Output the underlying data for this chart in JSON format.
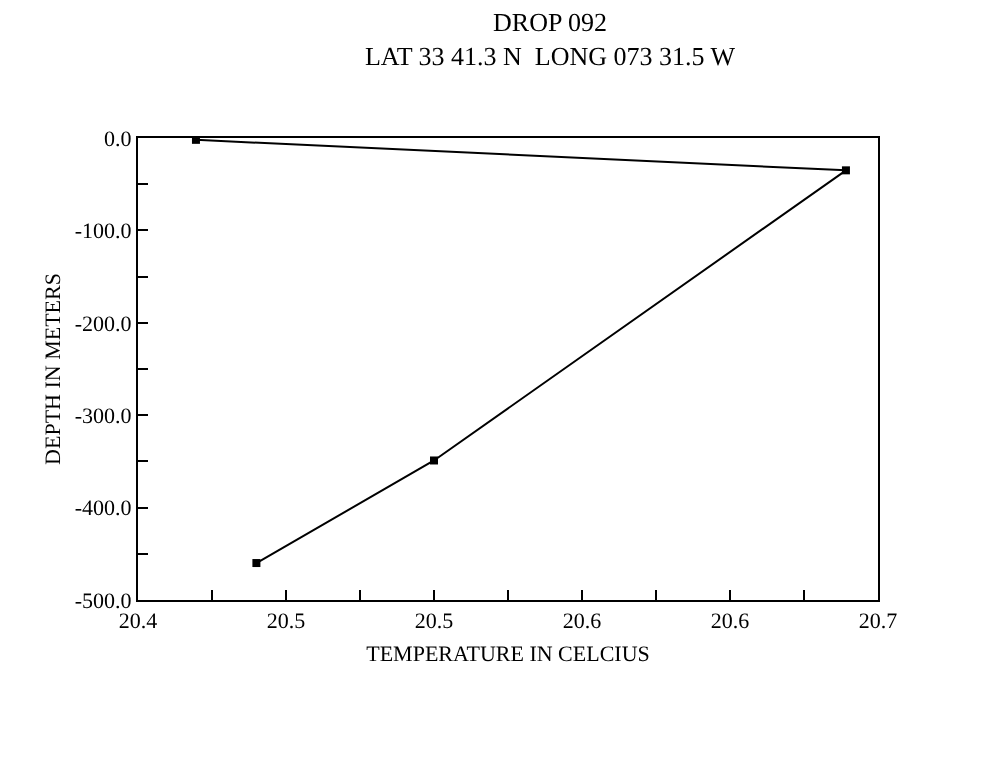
{
  "chart_data": {
    "type": "line",
    "title": "DROP 092\nLAT 33 41.3 N  LONG 073 31.5 W",
    "xlabel": "TEMPERATURE IN CELCIUS",
    "ylabel": "DEPTH IN METERS",
    "x": [
      20.4235,
      20.687,
      20.52,
      20.448
    ],
    "series": [
      {
        "color": "#000000",
        "values": [
          -2,
          -35,
          -349,
          -460
        ]
      }
    ],
    "marker": "square",
    "line_style": "solid",
    "grid": false,
    "legend": false,
    "xlim": [
      20.4,
      20.7
    ],
    "ylim": [
      -500,
      0
    ],
    "xticks": [
      {
        "value": 20.4,
        "label": "20.4"
      },
      {
        "value": 20.43,
        "label": null
      },
      {
        "value": 20.46,
        "label": "20.5"
      },
      {
        "value": 20.49,
        "label": null
      },
      {
        "value": 20.52,
        "label": "20.5"
      },
      {
        "value": 20.55,
        "label": null
      },
      {
        "value": 20.58,
        "label": "20.6"
      },
      {
        "value": 20.61,
        "label": null
      },
      {
        "value": 20.64,
        "label": "20.6"
      },
      {
        "value": 20.67,
        "label": null
      },
      {
        "value": 20.7,
        "label": "20.7"
      }
    ],
    "yticks": [
      {
        "value": 0,
        "label": "0.0"
      },
      {
        "value": -50,
        "label": null
      },
      {
        "value": -100,
        "label": "-100.0"
      },
      {
        "value": -150,
        "label": null
      },
      {
        "value": -200,
        "label": "-200.0"
      },
      {
        "value": -250,
        "label": null
      },
      {
        "value": -300,
        "label": "-300.0"
      },
      {
        "value": -350,
        "label": null
      },
      {
        "value": -400,
        "label": "-400.0"
      },
      {
        "value": -450,
        "label": null
      },
      {
        "value": -500,
        "label": "-500.0"
      }
    ]
  }
}
